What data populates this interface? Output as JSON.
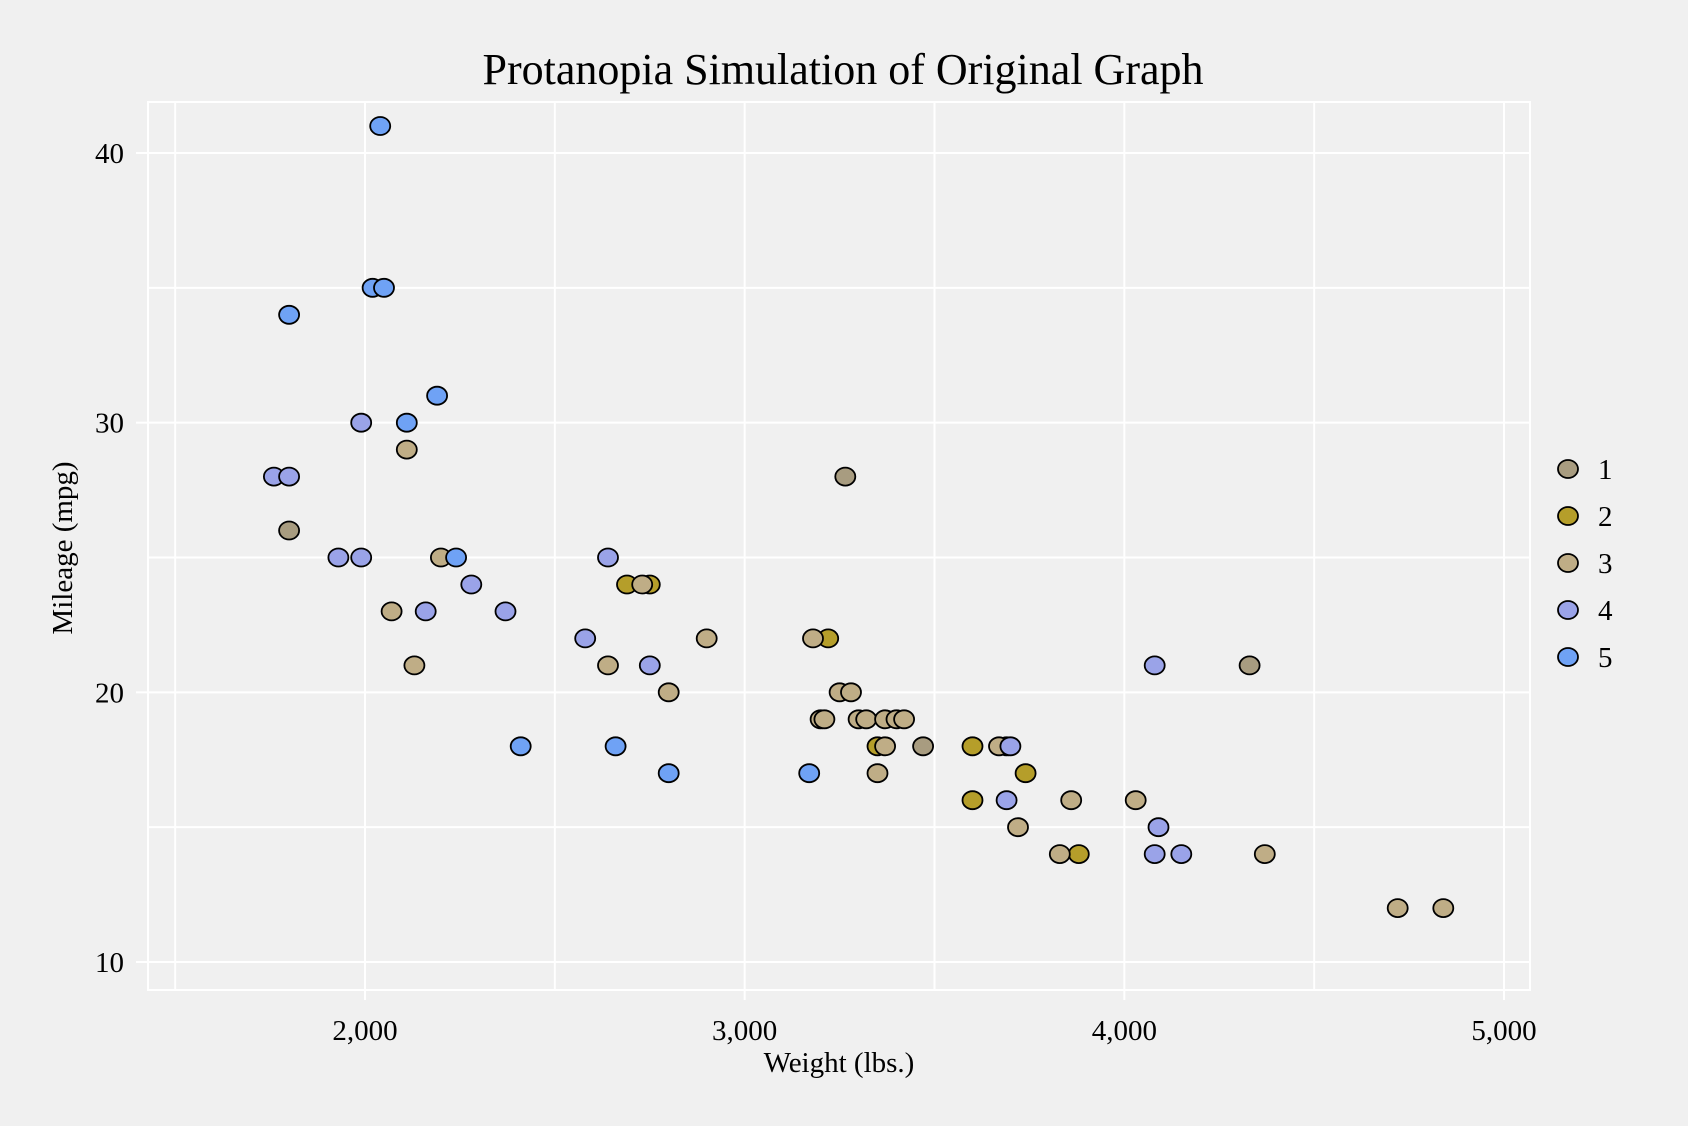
{
  "chart_data": {
    "type": "scatter",
    "title": "Protanopia Simulation of Original Graph",
    "xlabel": "Weight (lbs.)",
    "ylabel": "Mileage (mpg)",
    "xlim": [
      1700,
      5000
    ],
    "ylim": [
      10,
      41
    ],
    "x_ticks": [
      2000,
      3000,
      4000,
      5000
    ],
    "x_tick_labels": [
      "2,000",
      "3,000",
      "4,000",
      "5,000"
    ],
    "y_ticks": [
      10,
      20,
      30,
      40
    ],
    "y_tick_labels": [
      "10",
      "20",
      "30",
      "40"
    ],
    "grid": true,
    "legend_position": "right",
    "series": [
      {
        "name": "1",
        "color": "#a89c80",
        "points": [
          [
            1800,
            26
          ],
          [
            3265,
            28
          ],
          [
            3470,
            18
          ],
          [
            3690,
            18
          ],
          [
            4330,
            21
          ]
        ]
      },
      {
        "name": "2",
        "color": "#b59e2a",
        "points": [
          [
            2690,
            24
          ],
          [
            2750,
            24
          ],
          [
            3220,
            22
          ],
          [
            3350,
            18
          ],
          [
            3600,
            18
          ],
          [
            3600,
            16
          ],
          [
            3740,
            17
          ],
          [
            3880,
            14
          ]
        ]
      },
      {
        "name": "3",
        "color": "#bfad86",
        "points": [
          [
            2110,
            29
          ],
          [
            2070,
            23
          ],
          [
            2130,
            21
          ],
          [
            2200,
            25
          ],
          [
            2640,
            21
          ],
          [
            2730,
            24
          ],
          [
            2800,
            20
          ],
          [
            2900,
            22
          ],
          [
            3180,
            22
          ],
          [
            3250,
            20
          ],
          [
            3280,
            20
          ],
          [
            3200,
            19
          ],
          [
            3210,
            19
          ],
          [
            3300,
            19
          ],
          [
            3320,
            19
          ],
          [
            3370,
            19
          ],
          [
            3400,
            19
          ],
          [
            3420,
            19
          ],
          [
            3370,
            18
          ],
          [
            3350,
            17
          ],
          [
            3670,
            18
          ],
          [
            3720,
            15
          ],
          [
            3830,
            14
          ],
          [
            3860,
            16
          ],
          [
            4030,
            16
          ],
          [
            4370,
            14
          ],
          [
            4720,
            12
          ],
          [
            4840,
            12
          ]
        ]
      },
      {
        "name": "4",
        "color": "#9aa3e8",
        "points": [
          [
            1760,
            28
          ],
          [
            1800,
            28
          ],
          [
            1930,
            25
          ],
          [
            1990,
            30
          ],
          [
            1990,
            25
          ],
          [
            2160,
            23
          ],
          [
            2280,
            24
          ],
          [
            2370,
            23
          ],
          [
            2580,
            22
          ],
          [
            2640,
            25
          ],
          [
            2750,
            21
          ],
          [
            3700,
            18
          ],
          [
            3690,
            16
          ],
          [
            4080,
            21
          ],
          [
            4090,
            15
          ],
          [
            4080,
            14
          ],
          [
            4150,
            14
          ]
        ]
      },
      {
        "name": "5",
        "color": "#6fa2f5",
        "points": [
          [
            1800,
            34
          ],
          [
            2020,
            35
          ],
          [
            2050,
            35
          ],
          [
            2040,
            41
          ],
          [
            2110,
            30
          ],
          [
            2190,
            31
          ],
          [
            2240,
            25
          ],
          [
            2410,
            18
          ],
          [
            2660,
            18
          ],
          [
            2800,
            17
          ],
          [
            3170,
            17
          ]
        ]
      }
    ]
  }
}
